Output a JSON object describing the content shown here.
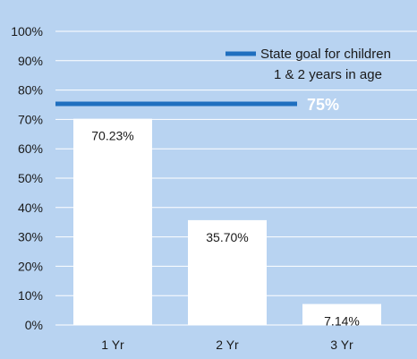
{
  "chart_data": {
    "type": "bar",
    "categories": [
      "1 Yr",
      "2 Yr",
      "3 Yr"
    ],
    "values": [
      70.23,
      35.7,
      7.14
    ],
    "value_labels": [
      "70.23%",
      "35.70%",
      "7.14%"
    ],
    "ylim": [
      0,
      100
    ],
    "ytick_labels": [
      "0%",
      "10%",
      "20%",
      "30%",
      "40%",
      "50%",
      "60%",
      "70%",
      "80%",
      "90%",
      "100%"
    ],
    "grid": true,
    "goal": {
      "value": 75,
      "label": "75%",
      "legend_text_line1": "State goal for children",
      "legend_text_line2": "1 & 2 years in age"
    },
    "colors": {
      "background": "#b8d3f1",
      "bar": "#ffffff",
      "goal_line": "#1f6fbf",
      "grid": "#ffffff",
      "text": "#1a1a1a"
    }
  }
}
